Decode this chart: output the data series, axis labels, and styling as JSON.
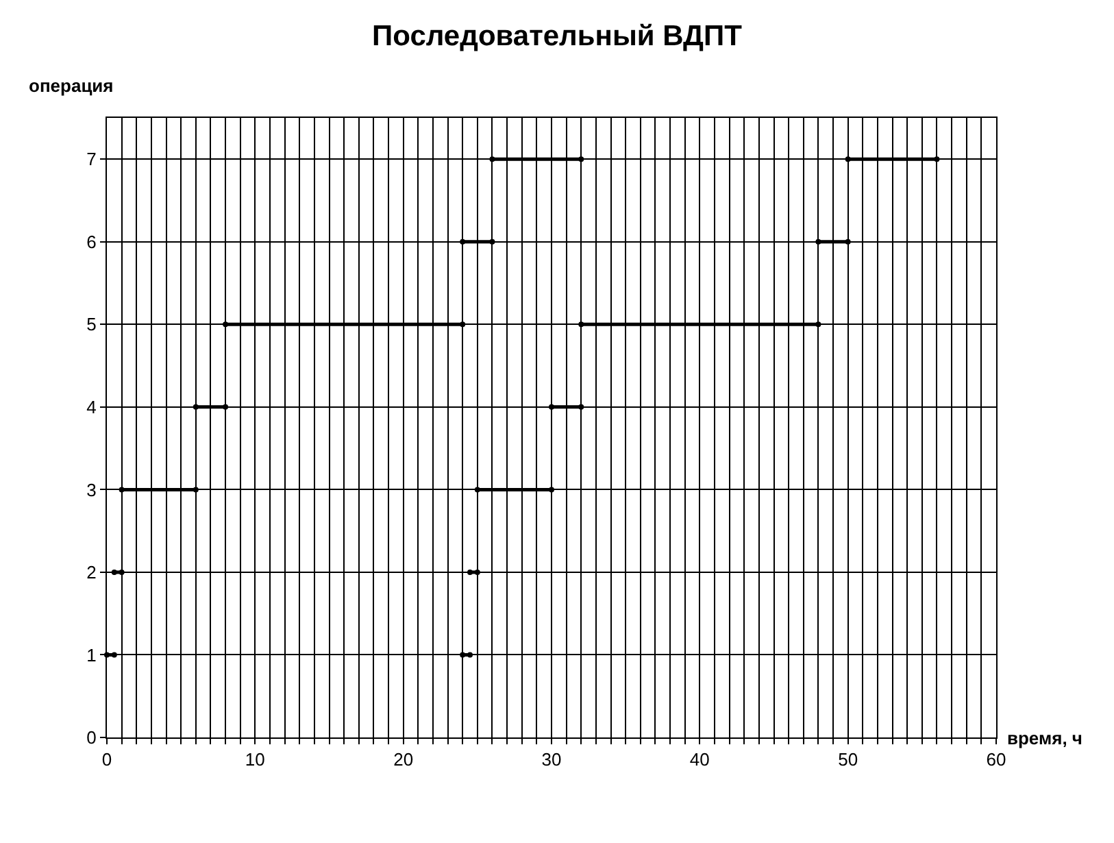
{
  "chart_data": {
    "type": "line",
    "title": "Последовательный ВДПТ",
    "xlabel": "время, ч",
    "ylabel": "операция",
    "xlim": [
      0,
      60
    ],
    "ylim": [
      0,
      7.5
    ],
    "xticks": [
      0,
      {
        "value": 1,
        "label": null
      },
      {
        "value": 2,
        "label": null
      },
      {
        "value": 3,
        "label": null
      },
      {
        "value": 4,
        "label": null
      },
      {
        "value": 5,
        "label": null
      },
      {
        "value": 6,
        "label": null
      },
      {
        "value": 7,
        "label": null
      },
      {
        "value": 8,
        "label": null
      },
      {
        "value": 9,
        "label": null
      },
      10,
      {
        "value": 11,
        "label": null
      },
      {
        "value": 12,
        "label": null
      },
      {
        "value": 13,
        "label": null
      },
      {
        "value": 14,
        "label": null
      },
      {
        "value": 15,
        "label": null
      },
      {
        "value": 16,
        "label": null
      },
      {
        "value": 17,
        "label": null
      },
      {
        "value": 18,
        "label": null
      },
      {
        "value": 19,
        "label": null
      },
      20,
      {
        "value": 21,
        "label": null
      },
      {
        "value": 22,
        "label": null
      },
      {
        "value": 23,
        "label": null
      },
      {
        "value": 24,
        "label": null
      },
      {
        "value": 25,
        "label": null
      },
      {
        "value": 26,
        "label": null
      },
      {
        "value": 27,
        "label": null
      },
      {
        "value": 28,
        "label": null
      },
      {
        "value": 29,
        "label": null
      },
      30,
      {
        "value": 31,
        "label": null
      },
      {
        "value": 32,
        "label": null
      },
      {
        "value": 33,
        "label": null
      },
      {
        "value": 34,
        "label": null
      },
      {
        "value": 35,
        "label": null
      },
      {
        "value": 36,
        "label": null
      },
      {
        "value": 37,
        "label": null
      },
      {
        "value": 38,
        "label": null
      },
      {
        "value": 39,
        "label": null
      },
      40,
      {
        "value": 41,
        "label": null
      },
      {
        "value": 42,
        "label": null
      },
      {
        "value": 43,
        "label": null
      },
      {
        "value": 44,
        "label": null
      },
      {
        "value": 45,
        "label": null
      },
      {
        "value": 46,
        "label": null
      },
      {
        "value": 47,
        "label": null
      },
      {
        "value": 48,
        "label": null
      },
      {
        "value": 49,
        "label": null
      },
      50,
      {
        "value": 51,
        "label": null
      },
      {
        "value": 52,
        "label": null
      },
      {
        "value": 53,
        "label": null
      },
      {
        "value": 54,
        "label": null
      },
      {
        "value": 55,
        "label": null
      },
      {
        "value": 56,
        "label": null
      },
      {
        "value": 57,
        "label": null
      },
      {
        "value": 58,
        "label": null
      },
      {
        "value": 59,
        "label": null
      },
      60
    ],
    "yticks": [
      0,
      1,
      2,
      3,
      4,
      5,
      6,
      7
    ],
    "grid": true,
    "marker": "circle",
    "line_style": "solid",
    "series": [
      {
        "color": "#000000",
        "x": [
          0,
          0.5
        ],
        "values": [
          1,
          1
        ]
      },
      {
        "color": "#000000",
        "x": [
          24,
          24.5
        ],
        "values": [
          1,
          1
        ]
      },
      {
        "color": "#000000",
        "x": [
          0.5,
          1
        ],
        "values": [
          2,
          2
        ]
      },
      {
        "color": "#000000",
        "x": [
          24.5,
          25
        ],
        "values": [
          2,
          2
        ]
      },
      {
        "color": "#000000",
        "x": [
          1,
          6
        ],
        "values": [
          3,
          3
        ]
      },
      {
        "color": "#000000",
        "x": [
          25,
          30
        ],
        "values": [
          3,
          3
        ]
      },
      {
        "color": "#000000",
        "x": [
          6,
          8
        ],
        "values": [
          4,
          4
        ]
      },
      {
        "color": "#000000",
        "x": [
          30,
          32
        ],
        "values": [
          4,
          4
        ]
      },
      {
        "color": "#000000",
        "x": [
          8,
          24
        ],
        "values": [
          5,
          5
        ]
      },
      {
        "color": "#000000",
        "x": [
          32,
          48
        ],
        "values": [
          5,
          5
        ]
      },
      {
        "color": "#000000",
        "x": [
          24,
          26
        ],
        "values": [
          6,
          6
        ]
      },
      {
        "color": "#000000",
        "x": [
          48,
          50
        ],
        "values": [
          6,
          6
        ]
      },
      {
        "color": "#000000",
        "x": [
          26,
          32
        ],
        "values": [
          7,
          7
        ]
      },
      {
        "color": "#000000",
        "x": [
          50,
          56
        ],
        "values": [
          7,
          7
        ]
      }
    ]
  }
}
